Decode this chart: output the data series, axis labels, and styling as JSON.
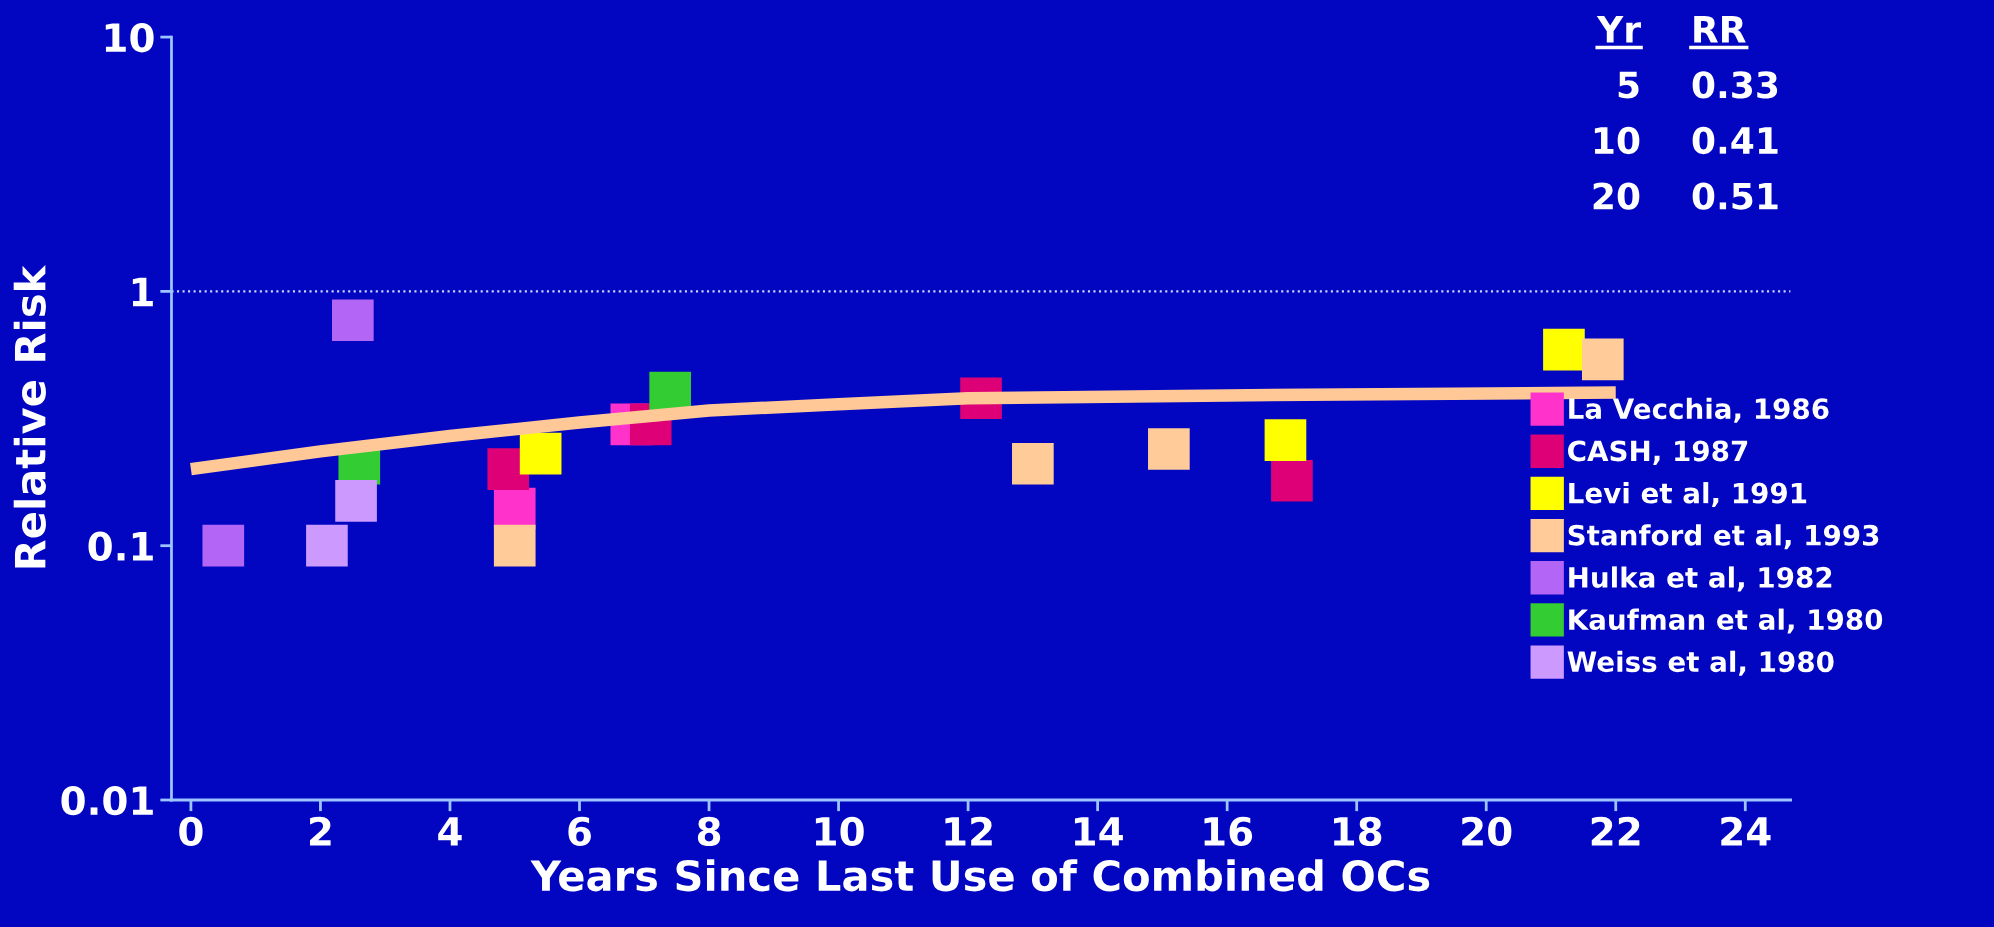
{
  "chart_data": {
    "type": "scatter",
    "xlabel": "Years Since Last Use of Combined OCs",
    "ylabel": "Relative Risk",
    "log": "y",
    "xlim": [
      -0.3,
      24.7
    ],
    "ylim": [
      0.01,
      10
    ],
    "xticks": [
      0,
      2,
      4,
      6,
      8,
      10,
      12,
      14,
      16,
      18,
      20,
      22,
      24
    ],
    "yticks": [
      0.01,
      0.1,
      1,
      10
    ],
    "grid": false,
    "legend": "right",
    "marker": "square",
    "ref_lines": [
      {
        "axis": "y",
        "value": 1,
        "label": null,
        "line_style": "dotted",
        "color": "#c8d8ff"
      }
    ],
    "annotations": [
      "Yr",
      "RR",
      "5",
      "0.33",
      "10",
      "0.41",
      "20",
      "0.51"
    ],
    "series": [
      {
        "type": "line",
        "color": "#ffc896",
        "line_style": "solid",
        "marker": "none",
        "x": [
          0,
          2,
          4,
          6,
          8,
          10,
          12,
          16,
          22
        ],
        "values": [
          0.2,
          0.235,
          0.27,
          0.305,
          0.34,
          0.36,
          0.38,
          0.39,
          0.4
        ]
      },
      {
        "name": "La Vecchia, 1986",
        "color": "#ff33cc",
        "x": [
          5.0,
          6.8
        ],
        "values": [
          0.14,
          0.3
        ]
      },
      {
        "name": "CASH, 1987",
        "color": "#dd0077",
        "x": [
          4.9,
          7.1,
          12.2,
          17.0
        ],
        "values": [
          0.2,
          0.3,
          0.38,
          0.18
        ]
      },
      {
        "name": "Levi et al, 1991",
        "color": "#ffff00",
        "x": [
          5.4,
          16.9,
          21.2
        ],
        "values": [
          0.23,
          0.26,
          0.59
        ]
      },
      {
        "name": "Stanford et al, 1993",
        "color": "#ffcc99",
        "x": [
          5.0,
          13.0,
          15.1,
          21.8
        ],
        "values": [
          0.1,
          0.21,
          0.24,
          0.54
        ]
      },
      {
        "name": "Hulka et al, 1982",
        "color": "#b366f5",
        "x": [
          0.5,
          2.5
        ],
        "values": [
          0.1,
          0.77
        ]
      },
      {
        "name": "Kaufman et al, 1980",
        "color": "#33cc33",
        "x": [
          2.6,
          7.4
        ],
        "values": [
          0.21,
          0.4
        ]
      },
      {
        "name": "Weiss et al, 1980",
        "color": "#cc99ff",
        "x": [
          2.1,
          2.55
        ],
        "values": [
          0.1,
          0.15
        ]
      }
    ]
  }
}
